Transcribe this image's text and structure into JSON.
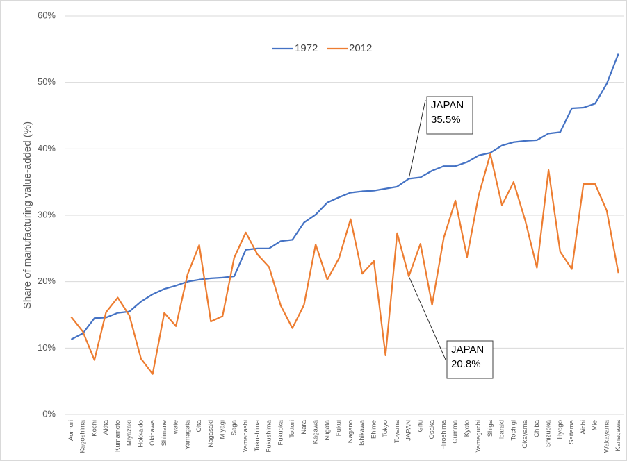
{
  "chart_data": {
    "type": "line",
    "y_label": "Share of manufacturing value-added (%)",
    "categories": [
      "Aomori",
      "Kagoshima",
      "Kochi",
      "Akita",
      "Kumamoto",
      "Miyazaki",
      "Hokkaido",
      "Okinawa",
      "Shimane",
      "Iwate",
      "Yamagata",
      "Oita",
      "Nagasaki",
      "Miyagi",
      "Saga",
      "Yamanashi",
      "Tokushima",
      "Fukushima",
      "Fukuoka",
      "Tottori",
      "Nara",
      "Kagawa",
      "Niigata",
      "Fukui",
      "Nagano",
      "Ishikawa",
      "Ehime",
      "Tokyo",
      "Toyama",
      "JAPAN",
      "Gifu",
      "Osaka",
      "Hiroshima",
      "Gumma",
      "Kyoto",
      "Yamaguchi",
      "Shiga",
      "Ibaraki",
      "Tochigi",
      "Okayama",
      "Chiba",
      "Shizuoka",
      "Hyogo",
      "Saitama",
      "Aichi",
      "Mie",
      "Wakayama",
      "Kanagawa"
    ],
    "series": [
      {
        "name": "1972",
        "color": "#4472c4",
        "values": [
          11.3,
          12.2,
          14.5,
          14.6,
          15.3,
          15.5,
          17.0,
          18.1,
          18.9,
          19.4,
          20.0,
          20.3,
          20.5,
          20.6,
          20.8,
          24.8,
          25.0,
          25.0,
          26.1,
          26.3,
          28.9,
          30.1,
          31.9,
          32.7,
          33.4,
          33.6,
          33.7,
          34.0,
          34.3,
          35.5,
          35.7,
          36.7,
          37.4,
          37.4,
          38.0,
          39.0,
          39.4,
          40.5,
          41.0,
          41.2,
          41.3,
          42.3,
          42.5,
          46.1,
          46.2,
          46.8,
          49.8,
          54.3
        ]
      },
      {
        "name": "2012",
        "color": "#ed7d31",
        "values": [
          14.7,
          12.5,
          8.2,
          15.4,
          17.6,
          14.9,
          8.4,
          6.1,
          15.3,
          13.3,
          21.1,
          25.5,
          14.0,
          14.8,
          23.6,
          27.4,
          24.1,
          22.2,
          16.4,
          13.0,
          16.5,
          25.6,
          20.3,
          23.5,
          29.4,
          21.2,
          23.1,
          8.9,
          27.3,
          20.8,
          25.7,
          16.5,
          26.6,
          32.2,
          23.7,
          33.0,
          39.2,
          31.5,
          35.0,
          29.2,
          22.1,
          36.8,
          24.5,
          21.9,
          34.7,
          34.7,
          30.7,
          21.3
        ]
      }
    ],
    "ylim": [
      0,
      60
    ],
    "yticks": [
      {
        "value": 0,
        "label": "0%"
      },
      {
        "value": 10,
        "label": "10%"
      },
      {
        "value": 20,
        "label": "20%"
      },
      {
        "value": 30,
        "label": "30%"
      },
      {
        "value": 40,
        "label": "40%"
      },
      {
        "value": 50,
        "label": "50%"
      },
      {
        "value": 60,
        "label": "60%"
      }
    ],
    "grid": true,
    "legend": "top",
    "annotations": [
      {
        "lines": [
          "JAPAN",
          "35.5%"
        ]
      },
      {
        "lines": [
          "JAPAN",
          "20.8%"
        ]
      }
    ]
  }
}
